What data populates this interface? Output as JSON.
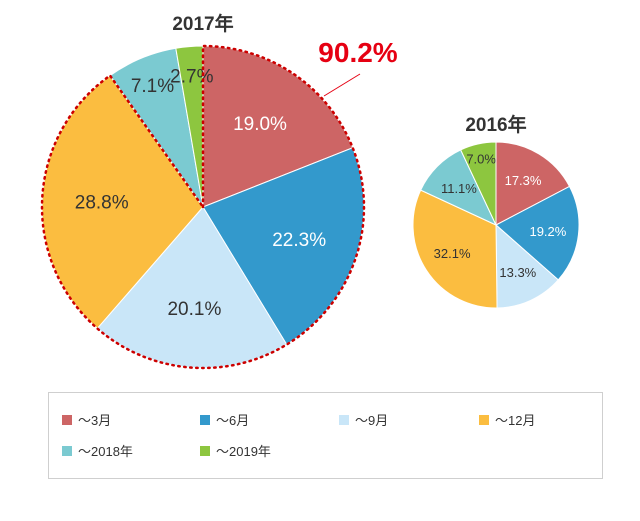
{
  "chart_data": [
    {
      "type": "pie",
      "title": "2017年",
      "categories": [
        "〜3月",
        "〜6月",
        "〜9月",
        "〜12月",
        "〜2018年",
        "〜2019年"
      ],
      "values": [
        19.0,
        22.3,
        20.1,
        28.8,
        7.1,
        2.7
      ],
      "value_labels": [
        "19.0%",
        "22.3%",
        "20.1%",
        "28.8%",
        "7.1%",
        "2.7%"
      ],
      "annotation": "90.2%"
    },
    {
      "type": "pie",
      "title": "2016年",
      "categories": [
        "〜3月",
        "〜6月",
        "〜9月",
        "〜12月",
        "〜2018年",
        "〜2019年"
      ],
      "values": [
        17.3,
        19.2,
        13.3,
        32.1,
        11.1,
        7.0
      ],
      "value_labels": [
        "17.3%",
        "19.2%",
        "13.3%",
        "32.1%",
        "11.1%",
        "7.0%"
      ]
    }
  ],
  "legend": {
    "items": [
      {
        "label": "〜3月",
        "color": "#cd6565"
      },
      {
        "label": "〜6月",
        "color": "#3399cc"
      },
      {
        "label": "〜9月",
        "color": "#c9e6f8"
      },
      {
        "label": "〜12月",
        "color": "#fbbd40"
      },
      {
        "label": "〜2018年",
        "color": "#7bcad1"
      },
      {
        "label": "〜2019年",
        "color": "#8dc63f"
      }
    ]
  },
  "colors": {
    "annotation": "#e60012",
    "dotted_outline": "#cc0000",
    "label_text": "#333333",
    "label_text_inverse": "#ffffff"
  }
}
